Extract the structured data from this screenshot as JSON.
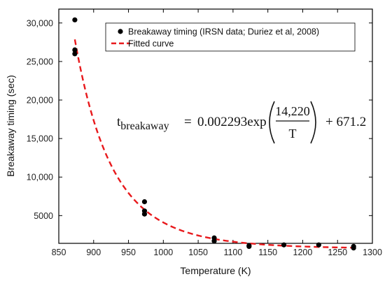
{
  "chart_data": {
    "type": "scatter",
    "xlabel": "Temperature (K)",
    "ylabel": "Breakaway timing (sec)",
    "xlim": [
      850,
      1300
    ],
    "ylim": [
      1400,
      31800
    ],
    "xticks": [
      850,
      900,
      950,
      1000,
      1050,
      1100,
      1150,
      1200,
      1250,
      1300
    ],
    "xtick_labels": [
      "850",
      "900",
      "950",
      "1000",
      "1050",
      "1100",
      "1150",
      "1200",
      "1250",
      "1300"
    ],
    "yticks": [
      5000,
      10000,
      15000,
      20000,
      25000,
      30000
    ],
    "ytick_labels": [
      "5000",
      "10,000",
      "15,000",
      "20,000",
      "25,000",
      "30,000"
    ],
    "grid": false,
    "legend_position": "top-right",
    "series": [
      {
        "name": "Breakaway timing (IRSN data; Duriez et al, 2008)",
        "kind": "scatter",
        "color": "#000000",
        "points": [
          {
            "x": 873,
            "y": 30400
          },
          {
            "x": 873,
            "y": 26500
          },
          {
            "x": 873,
            "y": 26000
          },
          {
            "x": 973,
            "y": 6800
          },
          {
            "x": 973,
            "y": 5600
          },
          {
            "x": 973,
            "y": 5200
          },
          {
            "x": 1073,
            "y": 2100
          },
          {
            "x": 1073,
            "y": 1700
          },
          {
            "x": 1123,
            "y": 1100
          },
          {
            "x": 1123,
            "y": 1000
          },
          {
            "x": 1173,
            "y": 1200
          },
          {
            "x": 1223,
            "y": 1200
          },
          {
            "x": 1273,
            "y": 1000
          },
          {
            "x": 1273,
            "y": 800
          }
        ]
      },
      {
        "name": "Fitted curve",
        "kind": "line",
        "style": "dashed",
        "color": "#e8191c",
        "x_start": 873,
        "x_end": 1273,
        "formula": {
          "a": 0.002293,
          "b": 14220,
          "c": 671.2
        }
      }
    ],
    "annotation": {
      "lhs_t": "t",
      "lhs_sub": "breakaway",
      "equals": "=",
      "coef": "0.002293exp",
      "numerator": "14,220",
      "denominator": "T",
      "tail": "+ 671.2"
    }
  }
}
